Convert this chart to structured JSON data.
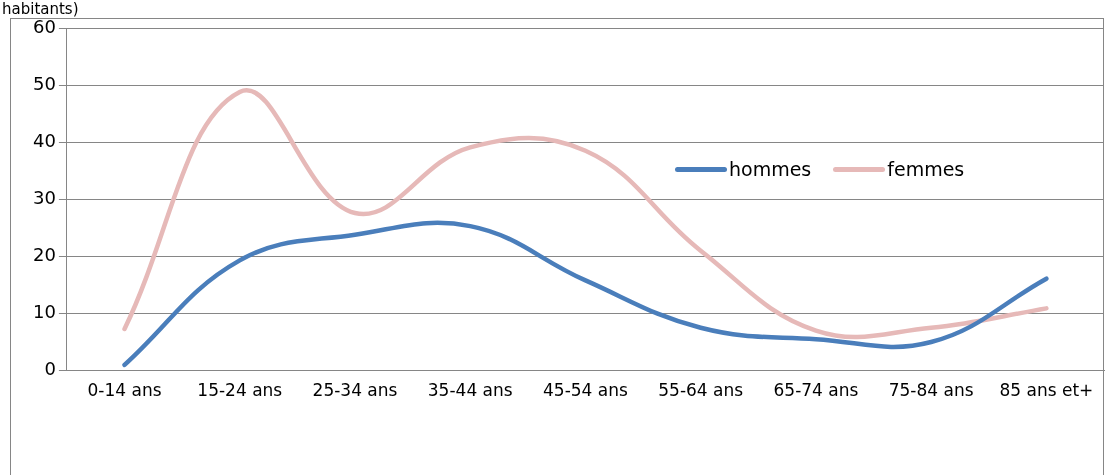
{
  "chart_data": {
    "type": "line",
    "title": "habitants)",
    "categories": [
      "0-14 ans",
      "15-24 ans",
      "25-34 ans",
      "35-44 ans",
      "45-54 ans",
      "55-64 ans",
      "65-74 ans",
      "75-84 ans",
      "85 ans et+"
    ],
    "series": [
      {
        "name": "hommes",
        "color": "#4a7ebb",
        "values": [
          1.0,
          19.3,
          23.8,
          25.3,
          15.8,
          7.5,
          5.5,
          5.0,
          16.1
        ]
      },
      {
        "name": "femmes",
        "color": "#e6b9b8",
        "values": [
          7.3,
          48.8,
          27.6,
          39.1,
          38.5,
          21,
          7.0,
          7.5,
          10.9
        ]
      }
    ],
    "ylim": [
      0,
      60
    ],
    "yticks": [
      0,
      10,
      20,
      30,
      40,
      50,
      60
    ],
    "grid": "y",
    "legend": "right",
    "marker": "none"
  }
}
